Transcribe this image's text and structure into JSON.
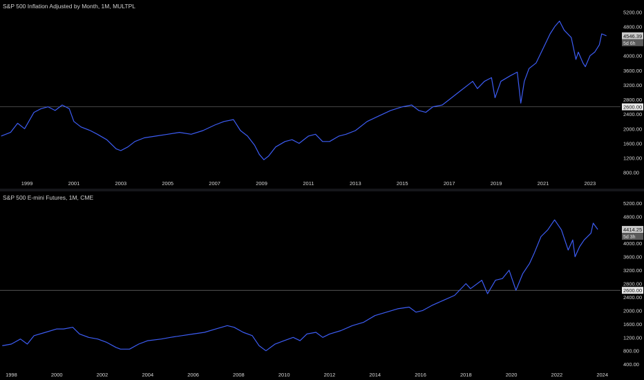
{
  "colors": {
    "background": "#000000",
    "series": "#3d5df5",
    "hline": "#8a8a8a"
  },
  "chart_data": [
    {
      "type": "line",
      "title": "S&P 500 Inflation Adjusted by Month, 1M, MULTPL",
      "x_unit": "year",
      "y_ticks": [
        "5200.00",
        "4800.00",
        "4400.00",
        "4000.00",
        "3600.00",
        "3200.00",
        "2800.00",
        "2400.00",
        "2000.00",
        "1600.00",
        "1200.00",
        "800.00"
      ],
      "x_ticks": [
        "1999",
        "2001",
        "2003",
        "2005",
        "2007",
        "2009",
        "2011",
        "2013",
        "2015",
        "2017",
        "2019",
        "2021",
        "2023"
      ],
      "ylim": [
        700,
        5300
      ],
      "xlim": [
        1997.85,
        2024.3
      ],
      "horizontal_line": {
        "value": 2600,
        "label": "2600.00"
      },
      "last_price": {
        "value": "4546.39",
        "countdown": "5d 6h"
      },
      "series": [
        {
          "x": [
            1997.9,
            1998.3,
            1998.6,
            1998.9,
            1999.3,
            1999.6,
            1999.9,
            2000.2,
            2000.5,
            2000.8,
            2001.0,
            2001.3,
            2001.7,
            2002.0,
            2002.4,
            2002.8,
            2003.0,
            2003.3,
            2003.6,
            2004.0,
            2004.5,
            2005.0,
            2005.5,
            2006.0,
            2006.5,
            2007.0,
            2007.4,
            2007.8,
            2008.1,
            2008.4,
            2008.7,
            2008.9,
            2009.1,
            2009.3,
            2009.6,
            2010.0,
            2010.3,
            2010.6,
            2011.0,
            2011.3,
            2011.6,
            2011.9,
            2012.3,
            2012.6,
            2013.0,
            2013.5,
            2014.0,
            2014.5,
            2015.0,
            2015.4,
            2015.7,
            2016.0,
            2016.3,
            2016.7,
            2017.0,
            2017.5,
            2018.0,
            2018.2,
            2018.5,
            2018.8,
            2018.95,
            2019.2,
            2019.6,
            2019.9,
            2020.05,
            2020.2,
            2020.4,
            2020.7,
            2021.0,
            2021.3,
            2021.5,
            2021.7,
            2021.9,
            2022.2,
            2022.4,
            2022.5,
            2022.7,
            2022.8,
            2023.0,
            2023.2,
            2023.4,
            2023.5,
            2023.7
          ],
          "y": [
            1800,
            1900,
            2150,
            2000,
            2450,
            2550,
            2600,
            2500,
            2650,
            2550,
            2200,
            2050,
            1950,
            1850,
            1700,
            1450,
            1400,
            1500,
            1650,
            1750,
            1800,
            1850,
            1900,
            1850,
            1950,
            2100,
            2200,
            2250,
            1950,
            1800,
            1550,
            1300,
            1150,
            1250,
            1500,
            1650,
            1700,
            1600,
            1800,
            1850,
            1650,
            1650,
            1800,
            1850,
            1950,
            2200,
            2350,
            2500,
            2600,
            2650,
            2500,
            2450,
            2600,
            2650,
            2800,
            3050,
            3300,
            3100,
            3300,
            3400,
            2850,
            3300,
            3450,
            3550,
            2700,
            3300,
            3650,
            3800,
            4200,
            4600,
            4800,
            4950,
            4700,
            4500,
            3900,
            4100,
            3800,
            3700,
            4000,
            4100,
            4300,
            4600,
            4546
          ]
        }
      ]
    },
    {
      "type": "line",
      "title": "S&P 500 E-mini Futures, 1M, CME",
      "x_unit": "year",
      "y_ticks": [
        "5200.00",
        "4800.00",
        "4400.00",
        "4000.00",
        "3600.00",
        "3200.00",
        "2800.00",
        "2400.00",
        "2000.00",
        "1600.00",
        "1200.00",
        "800.00",
        "400.00"
      ],
      "x_ticks": [
        "1998",
        "2000",
        "2002",
        "2004",
        "2006",
        "2008",
        "2010",
        "2012",
        "2014",
        "2016",
        "2018",
        "2020",
        "2022",
        "2024"
      ],
      "ylim": [
        300,
        5300
      ],
      "xlim": [
        1997.5,
        2024.8
      ],
      "horizontal_line": {
        "value": 2600,
        "label": "2600.00"
      },
      "last_price": {
        "value": "4414.25",
        "countdown": "5d 3h"
      },
      "series": [
        {
          "x": [
            1997.6,
            1998.0,
            1998.4,
            1998.7,
            1999.0,
            1999.5,
            2000.0,
            2000.3,
            2000.7,
            2001.0,
            2001.4,
            2001.8,
            2002.2,
            2002.6,
            2002.8,
            2003.2,
            2003.6,
            2004.0,
            2004.6,
            2005.0,
            2005.5,
            2006.0,
            2006.5,
            2007.0,
            2007.5,
            2007.8,
            2008.2,
            2008.6,
            2008.9,
            2009.2,
            2009.6,
            2010.0,
            2010.4,
            2010.7,
            2011.0,
            2011.4,
            2011.7,
            2012.0,
            2012.5,
            2013.0,
            2013.5,
            2014.0,
            2014.5,
            2015.0,
            2015.5,
            2015.8,
            2016.1,
            2016.5,
            2017.0,
            2017.5,
            2018.0,
            2018.2,
            2018.7,
            2018.95,
            2019.3,
            2019.6,
            2019.9,
            2020.2,
            2020.5,
            2020.8,
            2021.0,
            2021.3,
            2021.6,
            2021.9,
            2022.2,
            2022.5,
            2022.7,
            2022.8,
            2023.0,
            2023.2,
            2023.5,
            2023.6,
            2023.8
          ],
          "y": [
            950,
            1000,
            1150,
            1000,
            1250,
            1350,
            1450,
            1450,
            1500,
            1300,
            1200,
            1150,
            1050,
            900,
            850,
            850,
            1000,
            1100,
            1150,
            1200,
            1250,
            1300,
            1350,
            1450,
            1550,
            1500,
            1350,
            1250,
            950,
            800,
            1000,
            1100,
            1200,
            1100,
            1300,
            1350,
            1200,
            1300,
            1400,
            1550,
            1650,
            1850,
            1950,
            2050,
            2100,
            1950,
            2000,
            2150,
            2300,
            2450,
            2800,
            2650,
            2900,
            2500,
            2900,
            2950,
            3200,
            2600,
            3100,
            3400,
            3700,
            4200,
            4400,
            4700,
            4400,
            3800,
            4100,
            3600,
            3900,
            4100,
            4300,
            4600,
            4414
          ]
        }
      ]
    }
  ]
}
